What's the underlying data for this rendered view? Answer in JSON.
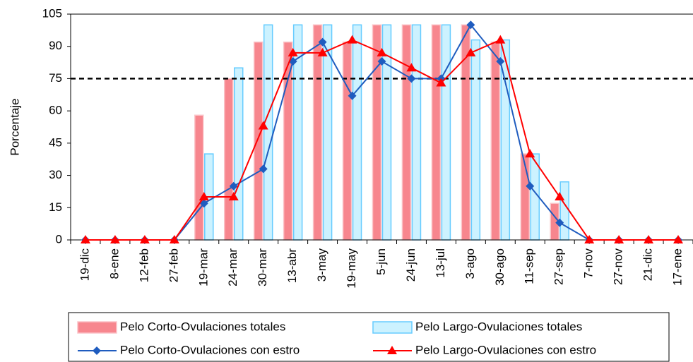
{
  "chart_data": {
    "type": "bar-line",
    "ylabel": "Porcentaje",
    "categories": [
      "19-dic",
      "8-ene",
      "12-feb",
      "27-feb",
      "19-mar",
      "24-mar",
      "30-mar",
      "13-abr",
      "3-may",
      "19-may",
      "5-jun",
      "24-jun",
      "13-jul",
      "3-ago",
      "30-ago",
      "11-sep",
      "27-sep",
      "7-nov",
      "27-nov",
      "21-dic",
      "17-ene"
    ],
    "series": [
      {
        "name": "Pelo Corto-Ovulaciones totales",
        "type": "bar",
        "color": "#f7868e",
        "values": [
          0,
          0,
          0,
          0,
          58,
          75,
          92,
          92,
          100,
          92,
          100,
          100,
          100,
          100,
          92,
          40,
          17,
          0,
          0,
          0,
          0
        ]
      },
      {
        "name": "Pelo Largo-Ovulaciones totales",
        "type": "bar",
        "color": "#ccf2ff",
        "values": [
          0,
          0,
          0,
          0,
          40,
          80,
          100,
          100,
          100,
          100,
          100,
          100,
          100,
          93,
          93,
          40,
          27,
          0,
          0,
          0,
          0
        ]
      },
      {
        "name": "Pelo Corto-Ovulaciones con estro",
        "type": "line",
        "marker": "diamond",
        "color": "#1f5cbf",
        "values": [
          0,
          0,
          0,
          0,
          17,
          25,
          33,
          83,
          92,
          67,
          83,
          75,
          75,
          100,
          83,
          25,
          8,
          0,
          0,
          0,
          0
        ]
      },
      {
        "name": "Pelo Largo-Ovulaciones con estro",
        "type": "line",
        "marker": "triangle",
        "color": "#ff0000",
        "values": [
          0,
          0,
          0,
          0,
          20,
          20,
          53,
          87,
          87,
          93,
          87,
          80,
          73,
          87,
          93,
          40,
          20,
          0,
          0,
          0,
          0
        ]
      }
    ],
    "reference_line": 75,
    "ylim": [
      0,
      105
    ],
    "yticks": [
      0,
      15,
      30,
      45,
      60,
      75,
      90,
      105
    ],
    "grid": false
  }
}
